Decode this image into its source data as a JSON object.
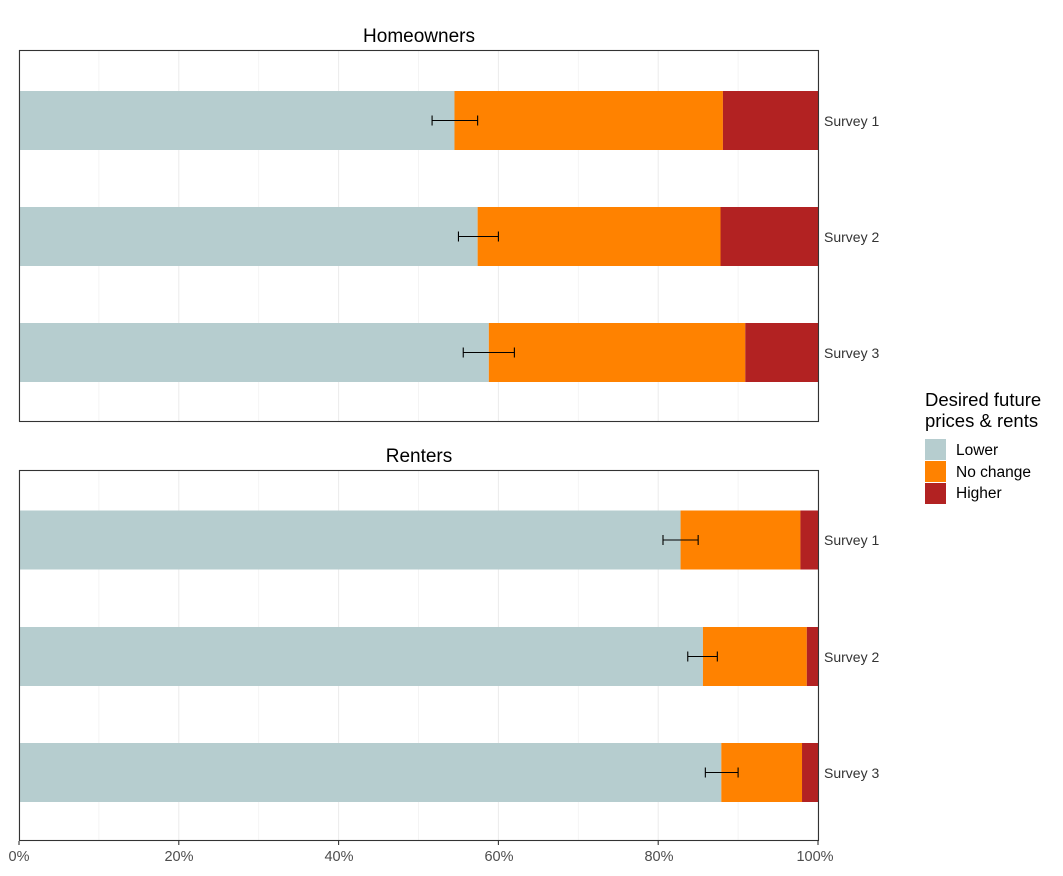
{
  "chart_data": {
    "type": "bar",
    "orientation": "horizontal",
    "stacked": true,
    "xlim": [
      0,
      100
    ],
    "x_ticks": [
      0,
      20,
      40,
      60,
      80,
      100
    ],
    "x_tick_labels": [
      "0%",
      "20%",
      "40%",
      "60%",
      "80%",
      "100%"
    ],
    "grid": true,
    "legend": {
      "title_lines": [
        "Desired future",
        "prices & rents"
      ],
      "placement": "right",
      "entries": [
        {
          "label": "Lower",
          "color": "#b6cdcf"
        },
        {
          "label": "No change",
          "color": "#ff8200"
        },
        {
          "label": "Higher",
          "color": "#b22222"
        }
      ]
    },
    "series_names": [
      "Lower",
      "No change",
      "Higher"
    ],
    "panels": [
      {
        "title": "Homeowners",
        "categories": [
          "Survey 1",
          "Survey 2",
          "Survey 3"
        ],
        "series": [
          {
            "name": "Lower",
            "values": [
              54.5,
              57.4,
              58.8
            ]
          },
          {
            "name": "No change",
            "values": [
              33.6,
              30.4,
              32.1
            ]
          },
          {
            "name": "Higher",
            "values": [
              11.9,
              12.2,
              9.1
            ]
          }
        ],
        "error_bars": [
          {
            "low": 51.7,
            "high": 57.4
          },
          {
            "low": 55.0,
            "high": 60.0
          },
          {
            "low": 55.6,
            "high": 62.0
          }
        ]
      },
      {
        "title": "Renters",
        "categories": [
          "Survey 1",
          "Survey 2",
          "Survey 3"
        ],
        "series": [
          {
            "name": "Lower",
            "values": [
              82.8,
              85.6,
              87.9
            ]
          },
          {
            "name": "No change",
            "values": [
              15.0,
              13.0,
              10.1
            ]
          },
          {
            "name": "Higher",
            "values": [
              2.2,
              1.4,
              2.0
            ]
          }
        ],
        "error_bars": [
          {
            "low": 80.6,
            "high": 85.0
          },
          {
            "low": 83.7,
            "high": 87.4
          },
          {
            "low": 85.9,
            "high": 90.0
          }
        ]
      }
    ]
  }
}
